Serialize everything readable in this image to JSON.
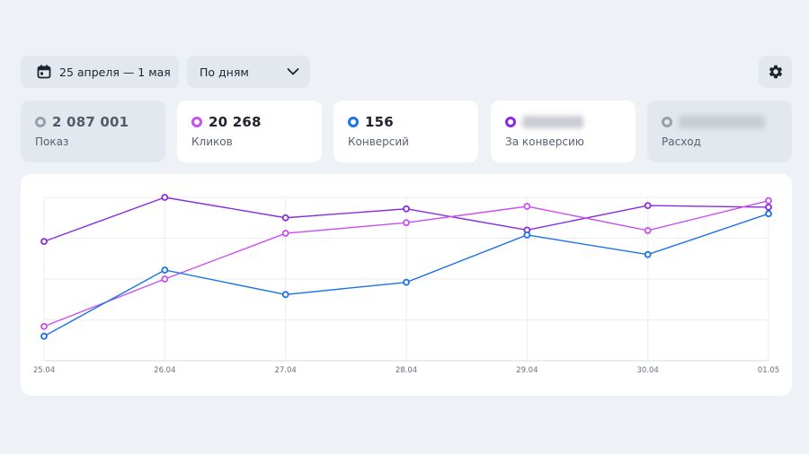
{
  "toolbar": {
    "date_range_label": "25 апреля — 1 мая",
    "date_icon": "calendar-icon",
    "period_label": "По дням",
    "period_icon": "chevron-down-icon",
    "settings_icon": "gear-icon"
  },
  "metrics": [
    {
      "value": "2 087 001",
      "label": "Показ",
      "color": "#9aa0ab",
      "active": false,
      "blurred": false
    },
    {
      "value": "20 268",
      "label": "Кликов",
      "color": "#c94ff0",
      "active": true,
      "blurred": false
    },
    {
      "value": "156",
      "label": "Конверсий",
      "color": "#1a73e8",
      "active": true,
      "blurred": false
    },
    {
      "value": "",
      "label": "За конверсию",
      "color": "#8a2be2",
      "active": true,
      "blurred": true
    },
    {
      "value": "",
      "label": "Расход",
      "color": "#9aa0ab",
      "active": false,
      "blurred": true
    }
  ],
  "chart_data": {
    "type": "line",
    "categories": [
      "25.04",
      "26.04",
      "27.04",
      "28.04",
      "29.04",
      "30.04",
      "01.05"
    ],
    "y_axis_labels_shown": false,
    "grid": true,
    "legend": "metric cards above chart",
    "series": [
      {
        "name": "За конверсию",
        "color": "#8a2be2",
        "values": [
          0.73,
          1.0,
          0.875,
          0.93,
          0.8,
          0.95,
          0.94
        ]
      },
      {
        "name": "Кликов",
        "color": "#c94ff0",
        "values": [
          0.21,
          0.5,
          0.78,
          0.845,
          0.945,
          0.797,
          0.98
        ]
      },
      {
        "name": "Конверсий",
        "color": "#1a73e8",
        "values": [
          0.15,
          0.555,
          0.405,
          0.48,
          0.77,
          0.65,
          0.9
        ]
      }
    ]
  }
}
